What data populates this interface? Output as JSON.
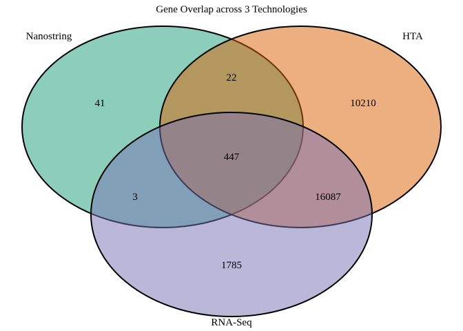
{
  "title": "Gene Overlap across 3 Technologies",
  "sets": [
    {
      "key": "nanostring",
      "name": "Nanostring",
      "color": "#1b9e77"
    },
    {
      "key": "hta",
      "name": "HTA",
      "color": "#d95f02"
    },
    {
      "key": "rnaseq",
      "name": "RNA-Seq",
      "color": "#7570b3"
    }
  ],
  "regions": {
    "nanostring_only": "41",
    "hta_only": "10210",
    "rnaseq_only": "1785",
    "nanostring_hta": "22",
    "nanostring_rnaseq": "3",
    "hta_rnaseq": "16087",
    "all_three": "447"
  },
  "style": {
    "fill_opacity": 0.5,
    "stroke_color": "#000000"
  }
}
